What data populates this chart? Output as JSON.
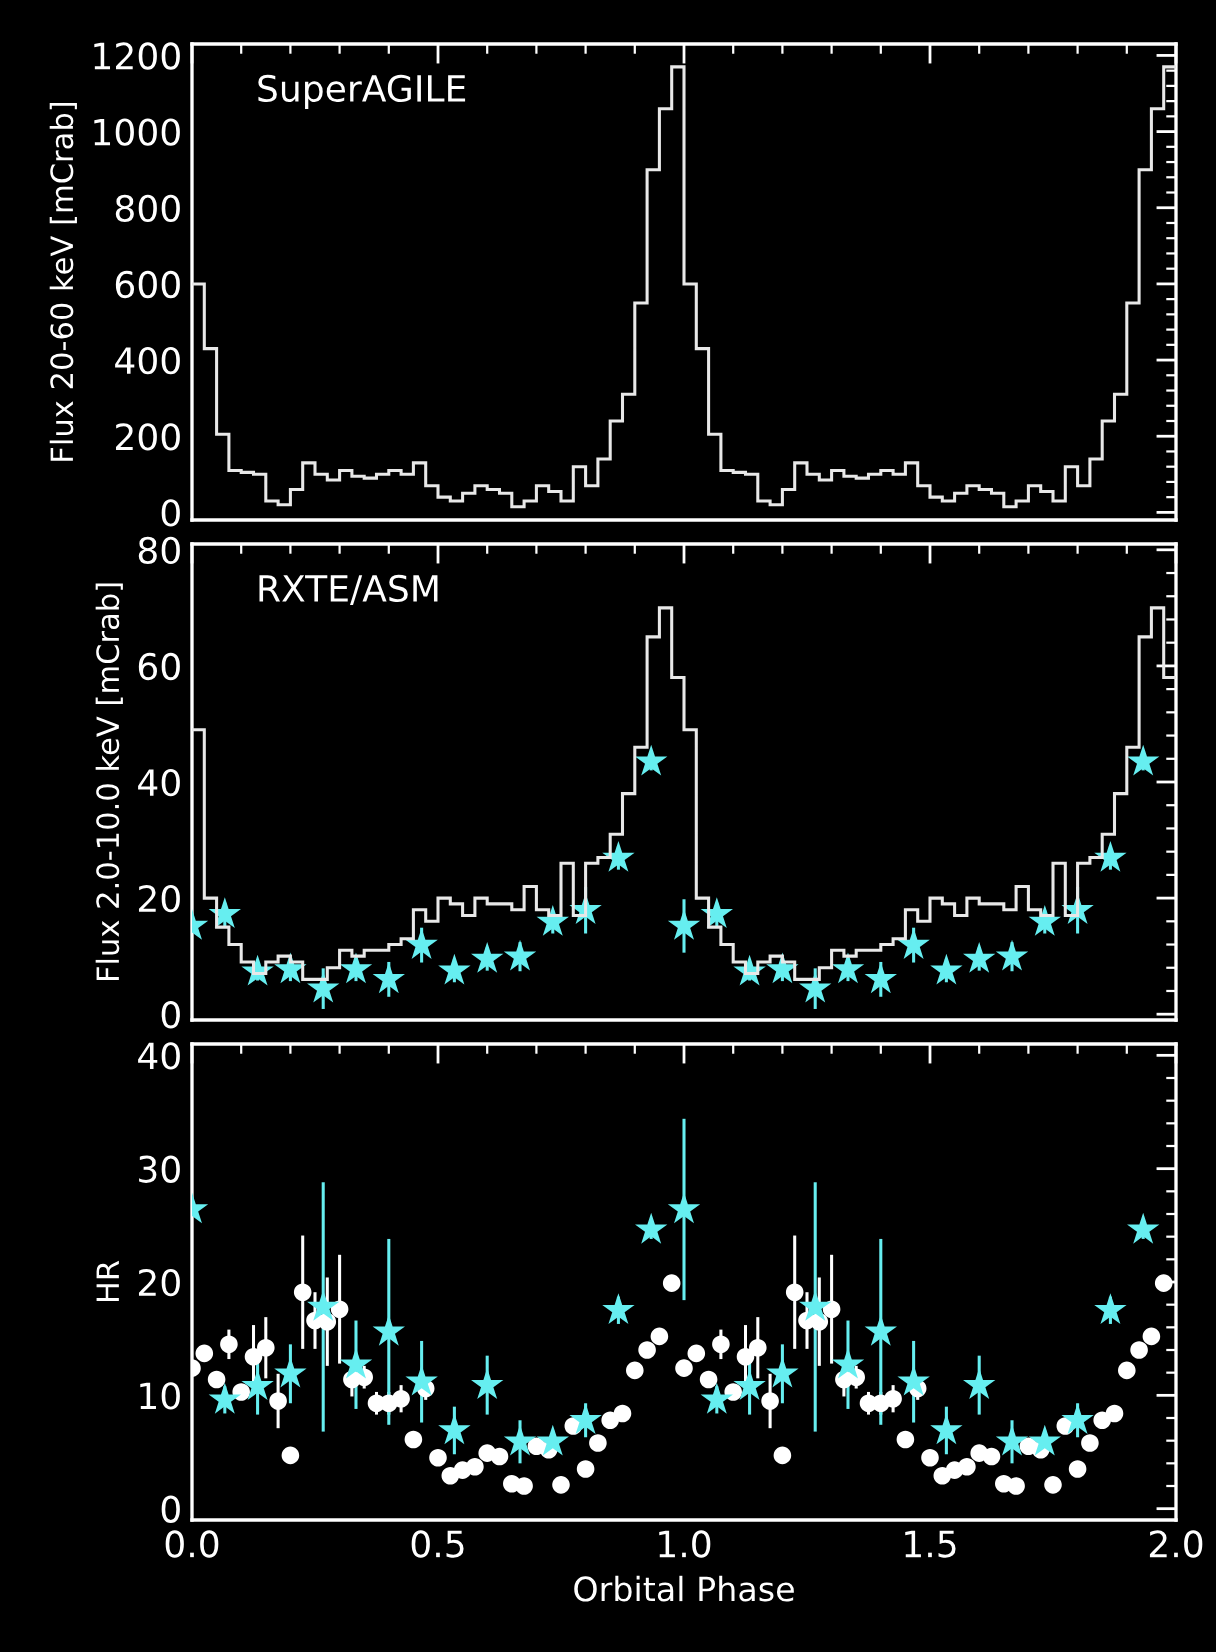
{
  "chart_data": [
    {
      "type": "histogram",
      "ylabel": "Flux 20-60 keV [mCrab]",
      "annotations": [
        "SuperAGILE"
      ],
      "xlim": [
        0,
        2
      ],
      "ylim": [
        -20,
        1230
      ],
      "xticks": [
        {
          "value": 0,
          "label": null
        },
        {
          "value": 0.5,
          "label": null
        },
        {
          "value": 1,
          "label": null
        },
        {
          "value": 1.5,
          "label": null
        },
        {
          "value": 2,
          "label": null
        }
      ],
      "yticks": [
        0,
        200,
        400,
        600,
        800,
        1000,
        1200
      ],
      "tick_labels": "y",
      "color": "#e8e8e8",
      "bins": [
        0,
        0.025,
        0.05,
        0.075,
        0.1,
        0.125,
        0.15,
        0.175,
        0.2,
        0.225,
        0.25,
        0.275,
        0.3,
        0.325,
        0.35,
        0.375,
        0.4,
        0.425,
        0.45,
        0.475,
        0.5,
        0.525,
        0.55,
        0.575,
        0.6,
        0.625,
        0.65,
        0.675,
        0.7,
        0.725,
        0.75,
        0.775,
        0.8,
        0.825,
        0.85,
        0.875,
        0.9,
        0.925,
        0.95,
        0.975,
        1,
        1.025,
        1.05,
        1.075,
        1.1,
        1.125,
        1.15,
        1.175,
        1.2,
        1.225,
        1.25,
        1.275,
        1.3,
        1.325,
        1.35,
        1.375,
        1.4,
        1.425,
        1.45,
        1.475,
        1.5,
        1.525,
        1.55,
        1.575,
        1.6,
        1.625,
        1.65,
        1.675,
        1.7,
        1.725,
        1.75,
        1.775,
        1.8,
        1.825,
        1.85,
        1.875,
        1.9,
        1.925,
        1.95,
        1.975,
        2
      ],
      "values": [
        600,
        430,
        205,
        110,
        105,
        100,
        30,
        20,
        60,
        130,
        100,
        85,
        110,
        95,
        90,
        100,
        110,
        100,
        130,
        70,
        40,
        30,
        50,
        70,
        60,
        50,
        15,
        30,
        70,
        55,
        30,
        120,
        70,
        140,
        240,
        310,
        550,
        900,
        1060,
        1170,
        600,
        430,
        205,
        110,
        105,
        100,
        30,
        20,
        60,
        130,
        100,
        85,
        110,
        95,
        90,
        100,
        110,
        100,
        130,
        70,
        40,
        30,
        50,
        70,
        60,
        50,
        15,
        30,
        70,
        55,
        30,
        120,
        70,
        140,
        240,
        310,
        550,
        900,
        1060,
        1170
      ]
    },
    {
      "type": "histogram",
      "ylabel": "Flux 2.0-10.0 keV [mCrab]",
      "annotations": [
        "RXTE/ASM"
      ],
      "xlim": [
        0,
        2
      ],
      "ylim": [
        -1,
        81
      ],
      "xticks": [
        {
          "value": 0,
          "label": null
        },
        {
          "value": 0.5,
          "label": null
        },
        {
          "value": 1,
          "label": null
        },
        {
          "value": 1.5,
          "label": null
        },
        {
          "value": 2,
          "label": null
        }
      ],
      "yticks": [
        0,
        20,
        40,
        60,
        80
      ],
      "tick_labels": "y",
      "color": "#e8e8e8",
      "bins": [
        0,
        0.025,
        0.05,
        0.075,
        0.1,
        0.125,
        0.15,
        0.175,
        0.2,
        0.225,
        0.25,
        0.275,
        0.3,
        0.325,
        0.35,
        0.375,
        0.4,
        0.425,
        0.45,
        0.475,
        0.5,
        0.525,
        0.55,
        0.575,
        0.6,
        0.625,
        0.65,
        0.675,
        0.7,
        0.725,
        0.75,
        0.775,
        0.8,
        0.825,
        0.85,
        0.875,
        0.9,
        0.925,
        0.95,
        0.975,
        1,
        1.025,
        1.05,
        1.075,
        1.1,
        1.125,
        1.15,
        1.175,
        1.2,
        1.225,
        1.25,
        1.275,
        1.3,
        1.325,
        1.35,
        1.375,
        1.4,
        1.425,
        1.45,
        1.475,
        1.5,
        1.525,
        1.55,
        1.575,
        1.6,
        1.625,
        1.65,
        1.675,
        1.7,
        1.725,
        1.75,
        1.775,
        1.8,
        1.825,
        1.85,
        1.875,
        1.9,
        1.925,
        1.95,
        1.975,
        2
      ],
      "values": [
        49,
        20,
        15,
        12,
        9,
        7,
        9,
        10,
        9,
        6,
        6,
        8,
        11,
        10,
        11,
        11,
        12,
        13,
        18,
        16,
        20,
        19,
        17,
        20,
        19,
        19,
        18,
        22,
        18,
        17,
        26,
        17,
        26,
        27,
        31,
        38,
        46,
        65,
        70,
        58,
        49,
        20,
        15,
        12,
        9,
        7,
        9,
        10,
        9,
        6,
        6,
        8,
        11,
        10,
        11,
        11,
        12,
        13,
        18,
        16,
        20,
        19,
        17,
        20,
        19,
        19,
        18,
        22,
        18,
        17,
        26,
        17,
        26,
        27,
        31,
        38,
        46,
        65,
        70,
        58
      ],
      "series": [
        {
          "type": "scatter",
          "color": "#66eef0",
          "marker": "star",
          "x": [
            0,
            0.0667,
            0.1333,
            0.2,
            0.2667,
            0.3333,
            0.4,
            0.4667,
            0.5333,
            0.6,
            0.6667,
            0.7333,
            0.8,
            0.8667,
            0.9333,
            1,
            1.0667,
            1.1333,
            1.2,
            1.2667,
            1.3333,
            1.4,
            1.4667,
            1.5333,
            1.6,
            1.6667,
            1.7333,
            1.8,
            1.8667,
            1.9333
          ],
          "values": [
            15.2,
            17.2,
            7.3,
            7.7,
            4.4,
            7.7,
            6,
            11.9,
            7.5,
            9.5,
            9.9,
            15.9,
            17.9,
            26.9,
            43.5,
            15.2,
            17.2,
            7.3,
            7.7,
            4.4,
            7.7,
            6,
            11.9,
            7.5,
            9.5,
            9.9,
            15.9,
            17.9,
            26.9,
            43.5
          ],
          "errors": [
            null,
            2,
            1.5,
            2,
            3.5,
            2,
            3,
            3,
            2,
            2,
            2.5,
            2,
            4,
            2,
            1.5,
            4.6,
            2,
            1.5,
            2,
            3.5,
            2,
            3,
            3,
            2,
            2,
            2.5,
            2,
            4,
            2,
            1.5
          ]
        }
      ]
    },
    {
      "type": "scatter",
      "ylabel": "HR",
      "xlabel": "Orbital Phase",
      "xlim": [
        0,
        2
      ],
      "ylim": [
        -1,
        41
      ],
      "xticks": [
        {
          "value": 0,
          "label": "0.0"
        },
        {
          "value": 0.5,
          "label": "0.5"
        },
        {
          "value": 1,
          "label": "1.0"
        },
        {
          "value": 1.5,
          "label": "1.5"
        },
        {
          "value": 2,
          "label": "2.0"
        }
      ],
      "yticks": [
        0,
        10,
        20,
        30,
        40
      ],
      "series": [
        {
          "color": "#ffffff",
          "marker": "circle",
          "x": [
            0,
            0.025,
            0.05,
            0.075,
            0.1,
            0.125,
            0.15,
            0.175,
            0.2,
            0.225,
            0.25,
            0.275,
            0.3,
            0.325,
            0.35,
            0.375,
            0.4,
            0.425,
            0.45,
            0.475,
            0.5,
            0.525,
            0.55,
            0.575,
            0.6,
            0.625,
            0.65,
            0.675,
            0.7,
            0.725,
            0.75,
            0.775,
            0.8,
            0.825,
            0.85,
            0.875,
            0.9,
            0.925,
            0.95,
            0.975,
            1,
            1.025,
            1.05,
            1.075,
            1.1,
            1.125,
            1.15,
            1.175,
            1.2,
            1.225,
            1.25,
            1.275,
            1.3,
            1.325,
            1.35,
            1.375,
            1.4,
            1.425,
            1.45,
            1.475,
            1.5,
            1.525,
            1.55,
            1.575,
            1.6,
            1.625,
            1.65,
            1.675,
            1.7,
            1.725,
            1.75,
            1.775,
            1.8,
            1.825,
            1.85,
            1.875,
            1.9,
            1.925,
            1.95,
            1.975
          ],
          "values": [
            12.4,
            13.7,
            11.4,
            14.5,
            10.3,
            13.4,
            14.2,
            9.5,
            4.7,
            19.1,
            16.6,
            16.5,
            17.6,
            11.4,
            11.6,
            9.3,
            9.3,
            9.7,
            6.1,
            10.6,
            4.5,
            2.9,
            3.4,
            3.7,
            4.9,
            4.6,
            2.2,
            2,
            5.5,
            5.2,
            2.1,
            7.3,
            3.5,
            5.8,
            7.8,
            8.4,
            12.2,
            14,
            15.2,
            19.9,
            12.4,
            13.7,
            11.4,
            14.5,
            10.3,
            13.4,
            14.2,
            9.5,
            4.7,
            19.1,
            16.6,
            16.5,
            17.6,
            11.4,
            11.6,
            9.3,
            9.3,
            9.7,
            6.1,
            10.6,
            4.5,
            2.9,
            3.4,
            3.7,
            4.9,
            4.6,
            2.2,
            2,
            5.5,
            5.2,
            2.1,
            7.3,
            3.5,
            5.8,
            7.8,
            8.4,
            12.2,
            14,
            15.2,
            19.9
          ],
          "errors": [
            null,
            null,
            null,
            1.3,
            null,
            2.8,
            2.7,
            2.4,
            null,
            5,
            2.5,
            3.9,
            4.8,
            1.5,
            1,
            1,
            1,
            1.2,
            null,
            1,
            null,
            null,
            null,
            null,
            null,
            null,
            null,
            null,
            null,
            null,
            null,
            null,
            null,
            null,
            null,
            null,
            null,
            null,
            null,
            null,
            null,
            null,
            null,
            1.3,
            null,
            2.8,
            2.7,
            2.4,
            null,
            5,
            2.5,
            3.9,
            4.8,
            1.5,
            1,
            1,
            1,
            1.2,
            null,
            1,
            null,
            null,
            null,
            null,
            null,
            null,
            null,
            null,
            null,
            null,
            null,
            null,
            null,
            null,
            null,
            null,
            null,
            null,
            null,
            null
          ]
        },
        {
          "color": "#66eef0",
          "marker": "star",
          "x": [
            0,
            0.0667,
            0.1333,
            0.2,
            0.2667,
            0.3333,
            0.4,
            0.4667,
            0.5333,
            0.6,
            0.6667,
            0.7333,
            0.8,
            0.8667,
            0.9333,
            1,
            1.0667,
            1.1333,
            1.2,
            1.2667,
            1.3333,
            1.4,
            1.4667,
            1.5333,
            1.6,
            1.6667,
            1.7333,
            1.8,
            1.8667,
            1.9333
          ],
          "values": [
            26.4,
            9.6,
            10.8,
            11.9,
            17.8,
            12.7,
            15.6,
            11.2,
            6.9,
            10.9,
            5.9,
            5.9,
            7.8,
            17.5,
            24.6,
            26.4,
            9.6,
            10.8,
            11.9,
            17.8,
            12.7,
            15.6,
            11.2,
            6.9,
            10.9,
            5.9,
            5.9,
            7.8,
            17.5,
            24.6
          ],
          "errors": [
            null,
            1.2,
            2.5,
            2.6,
            11,
            3.9,
            8.2,
            3.6,
            2.1,
            2.6,
            1.9,
            1,
            1.5,
            1.2,
            0.8,
            8,
            1.2,
            2.5,
            2.6,
            11,
            3.9,
            8.2,
            3.6,
            2.1,
            2.6,
            1.9,
            1,
            1.5,
            1.2,
            0.8
          ]
        }
      ]
    }
  ]
}
